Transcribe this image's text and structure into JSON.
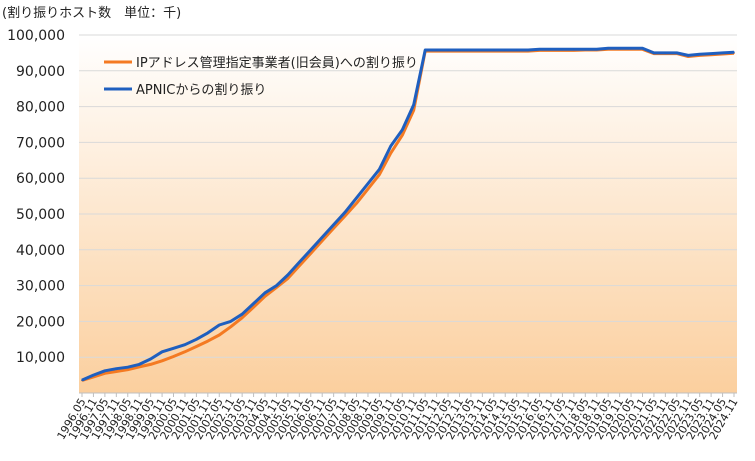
{
  "unit_note": "(割り振りホスト数　単位：千)",
  "chart_data": {
    "type": "line",
    "title": "",
    "xlabel": "",
    "ylabel": "",
    "ylim": [
      0,
      100000
    ],
    "yticks": [
      10000,
      20000,
      30000,
      40000,
      50000,
      60000,
      70000,
      80000,
      90000,
      100000
    ],
    "ytick_labels": [
      "10,000",
      "20,000",
      "30,000",
      "40,000",
      "50,000",
      "60,000",
      "70,000",
      "80,000",
      "90,000",
      "100,000"
    ],
    "grid": "horizontal",
    "legend_position": "top-left",
    "x": [
      "1996.05",
      "1996.11",
      "1997.05",
      "1997.11",
      "1998.05",
      "1998.11",
      "1999.05",
      "1999.11",
      "2000.05",
      "2000.11",
      "2001.05",
      "2001.11",
      "2002.05",
      "2002.11",
      "2003.05",
      "2003.11",
      "2004.05",
      "2004.11",
      "2005.05",
      "2005.11",
      "2006.05",
      "2006.11",
      "2007.05",
      "2007.11",
      "2008.05",
      "2008.11",
      "2009.05",
      "2009.11",
      "2010.05",
      "2010.11",
      "2011.05",
      "2011.11",
      "2012.05",
      "2012.11",
      "2013.05",
      "2013.11",
      "2014.05",
      "2014.11",
      "2015.05",
      "2015.11",
      "2016.05",
      "2016.11",
      "2017.05",
      "2017.11",
      "2018.05",
      "2018.11",
      "2019.05",
      "2019.11",
      "2020.05",
      "2020.11",
      "2021.05",
      "2021.11",
      "2022.05",
      "2022.11",
      "2023.05",
      "2023.11",
      "2024.05",
      "2024.11"
    ],
    "series": [
      {
        "name": "IPアドレス管理指定事業者(旧会員)への割り振り",
        "color": "#f47a22",
        "values": [
          3500,
          4500,
          5500,
          6000,
          6500,
          7300,
          8000,
          9000,
          10200,
          11500,
          13000,
          14500,
          16200,
          18500,
          21000,
          24000,
          27000,
          29500,
          32000,
          35500,
          39000,
          42500,
          46000,
          49500,
          53000,
          57000,
          61000,
          67000,
          72000,
          79000,
          95500,
          95500,
          95500,
          95500,
          95500,
          95500,
          95500,
          95500,
          95500,
          95500,
          95700,
          95700,
          95700,
          95700,
          95800,
          95800,
          96000,
          96000,
          96000,
          96000,
          94800,
          94800,
          94800,
          94000,
          94300,
          94500,
          94700,
          94900
        ]
      },
      {
        "name": "APNICからの割り振り",
        "color": "#1f5fbf",
        "values": [
          3600,
          5000,
          6200,
          6800,
          7200,
          8000,
          9500,
          11500,
          12500,
          13500,
          15000,
          16800,
          19000,
          20000,
          22000,
          25000,
          28000,
          30000,
          33000,
          36500,
          40000,
          43500,
          47000,
          50500,
          54500,
          58500,
          62500,
          69000,
          73500,
          80500,
          95800,
          95800,
          95800,
          95800,
          95800,
          95800,
          95800,
          95800,
          95800,
          95800,
          96000,
          96000,
          96000,
          96000,
          96000,
          96000,
          96300,
          96300,
          96300,
          96300,
          95000,
          95000,
          95000,
          94300,
          94600,
          94800,
          95000,
          95200
        ]
      }
    ]
  }
}
